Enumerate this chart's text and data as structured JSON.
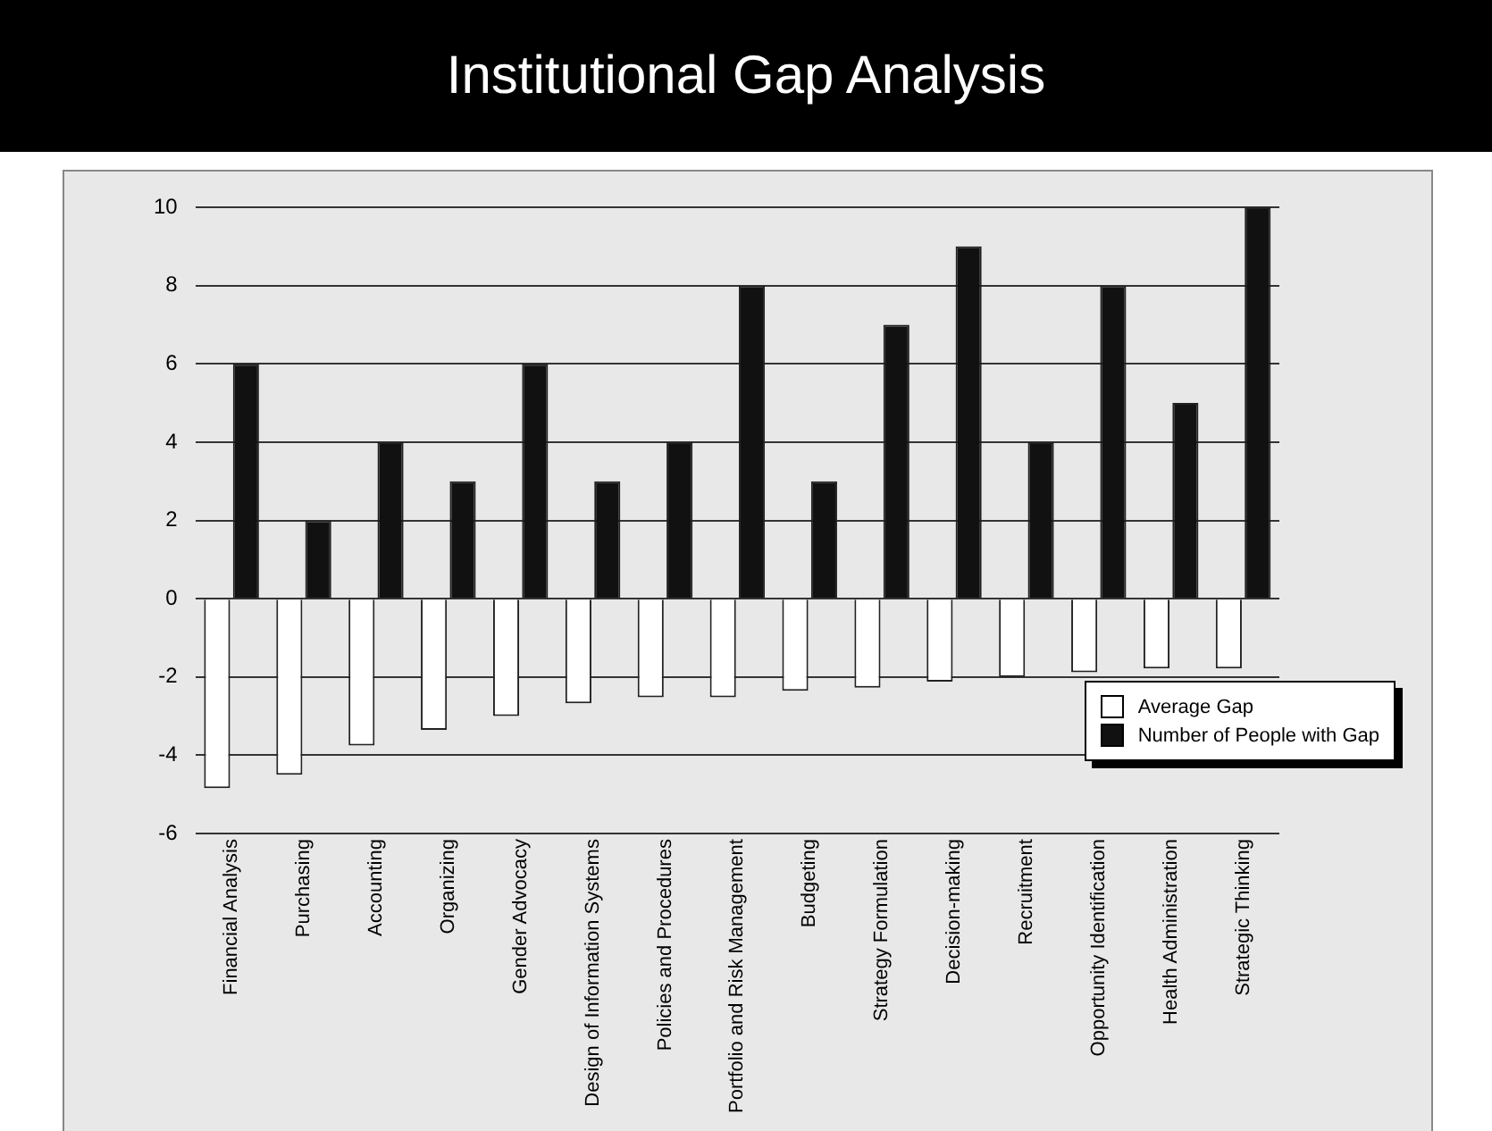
{
  "chart_data": {
    "type": "bar",
    "title": "Institutional Gap Analysis",
    "categories": [
      "Financial Analysis",
      "Purchasing",
      "Accounting",
      "Organizing",
      "Gender Advocacy",
      "Design of Information Systems",
      "Policies and Procedures",
      "Portfolio and Risk Management",
      "Budgeting",
      "Strategy Formulation",
      "Decision-making",
      "Recruitment",
      "Opportunity Identification",
      "Health Administration",
      "Strategic Thinking"
    ],
    "series": [
      {
        "name": "Average Gap",
        "color": "#ffffff",
        "values": [
          -4.84,
          -4.5,
          -3.75,
          -3.35,
          -3.0,
          -2.67,
          -2.52,
          -2.52,
          -2.35,
          -2.27,
          -2.12,
          -2.0,
          -1.88,
          -1.78,
          -1.78
        ]
      },
      {
        "name": "Number of People with Gap",
        "color": "#111111",
        "values": [
          6,
          2,
          4,
          3,
          6,
          3,
          4,
          8,
          3,
          7,
          9,
          4,
          8,
          5,
          10
        ]
      }
    ],
    "ylim": [
      -6,
      10
    ],
    "yticks": [
      -6,
      -4,
      -2,
      0,
      2,
      4,
      6,
      8,
      10
    ],
    "grid": "y",
    "legend": "bottom right"
  }
}
